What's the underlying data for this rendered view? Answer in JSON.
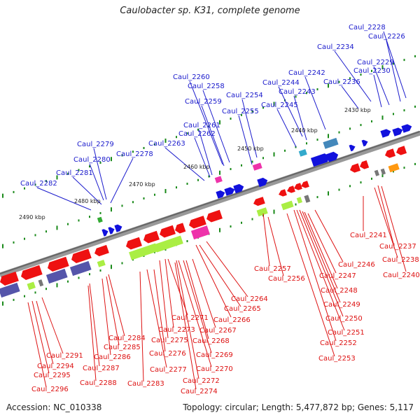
{
  "title": "Caulobacter sp. K31, complete genome",
  "accession": "Accession: NC_010338",
  "footer": "Topology: circular; Length: 5,477,872 bp; Genes: 5,117",
  "scale_labels": [
    "2430 kbp",
    "2440 kbp",
    "2450 kbp",
    "2460 kbp",
    "2470 kbp",
    "2480 kbp",
    "2490 kbp"
  ],
  "colors": {
    "top_label": "#1a1acc",
    "bottom_label": "#dd1111",
    "backbone": "#888888",
    "tick": "#1a8a1a"
  },
  "top_labels": [
    "Caul_2228",
    "Caul_2226",
    "Caul_2234",
    "Caul_2229",
    "Caul_2230",
    "Caul_2242",
    "Caul_2236",
    "Caul_2260",
    "Caul_2244",
    "Caul_2243",
    "Caul_2258",
    "Caul_2254",
    "Caul_2259",
    "Caul_2245",
    "Caul_2255",
    "Caul_2261",
    "Caul_2262",
    "Caul_2263",
    "Caul_2279",
    "Caul_2278",
    "Caul_2280",
    "Caul_2281",
    "Caul_2282"
  ],
  "bottom_labels": [
    "Caul_2241",
    "Caul_2237",
    "Caul_2238",
    "Caul_2240",
    "Caul_2257",
    "Caul_2246",
    "Caul_2256",
    "Caul_2247",
    "Caul_2248",
    "Caul_2264",
    "Caul_2249",
    "Caul_2265",
    "Caul_2266",
    "Caul_2250",
    "Caul_2271",
    "Caul_2267",
    "Caul_2273",
    "Caul_2251",
    "Caul_2275",
    "Caul_2268",
    "Caul_2284",
    "Caul_2252",
    "Caul_2285",
    "Caul_2276",
    "Caul_2269",
    "Caul_2291",
    "Caul_2286",
    "Caul_2253",
    "Caul_2294",
    "Caul_2287",
    "Caul_2277",
    "Caul_2270",
    "Caul_2295",
    "Caul_2288",
    "Caul_2283",
    "Caul_2272",
    "Caul_2296",
    "Caul_2274"
  ]
}
